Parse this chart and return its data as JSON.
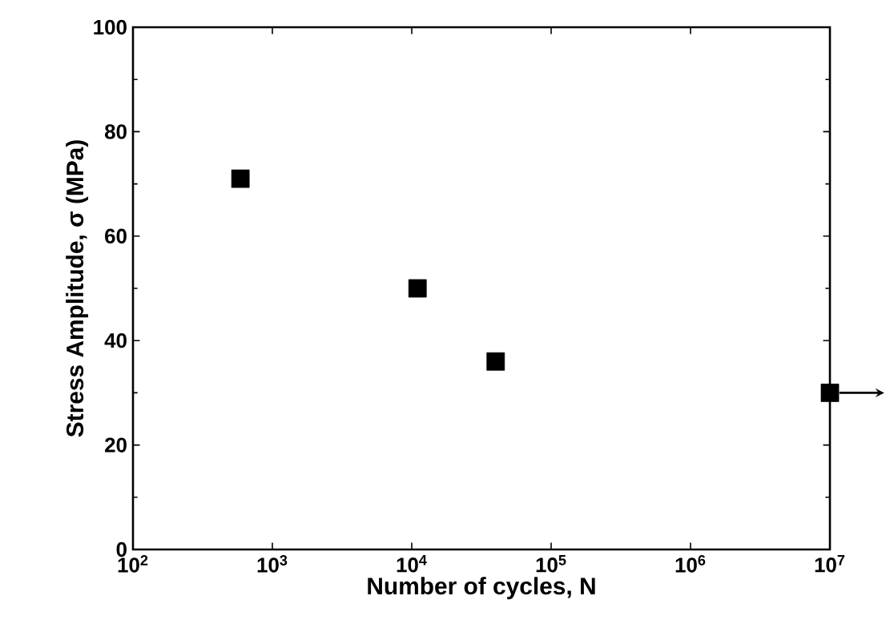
{
  "chart_data": {
    "type": "scatter",
    "xlabel": "Number of cycles, N",
    "ylabel": "Stress Amplitude, σ (MPa)",
    "x": [
      590,
      11000,
      40000,
      10000000
    ],
    "values": [
      71,
      50,
      36,
      30
    ],
    "color": "#000000",
    "marker": "square",
    "log": "x",
    "xlim": [
      100,
      10000000
    ],
    "ylim": [
      0,
      100
    ],
    "xticks": [
      {
        "value": 100,
        "label": "10$^{2}$"
      },
      {
        "value": 1000,
        "label": "10$^{3}$"
      },
      {
        "value": 10000,
        "label": "10$^{4}$"
      },
      {
        "value": 100000,
        "label": "10$^{5}$"
      },
      {
        "value": 1000000,
        "label": "10$^{6}$"
      },
      {
        "value": 10000000,
        "label": "10$^{7}$"
      }
    ],
    "yticks": [
      0,
      20,
      40,
      60,
      80,
      100
    ]
  }
}
